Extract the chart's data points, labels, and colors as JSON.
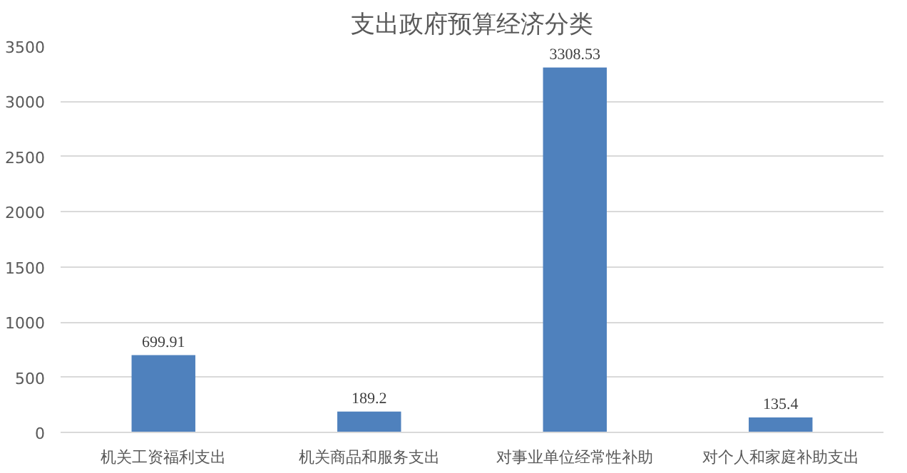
{
  "chart_data": {
    "type": "bar",
    "title": "支出政府预算经济分类",
    "categories": [
      "机关工资福利支出",
      "机关商品和服务支出",
      "对事业单位经常性补助",
      "对个人和家庭补助支出"
    ],
    "values": [
      699.91,
      189.2,
      3308.53,
      135.4
    ],
    "color": "#4f81bd",
    "ylim": [
      0,
      3500
    ],
    "yticks": [
      0,
      500,
      1000,
      1500,
      2000,
      2500,
      3000,
      3500
    ],
    "grid": "y",
    "data_labels": true
  }
}
